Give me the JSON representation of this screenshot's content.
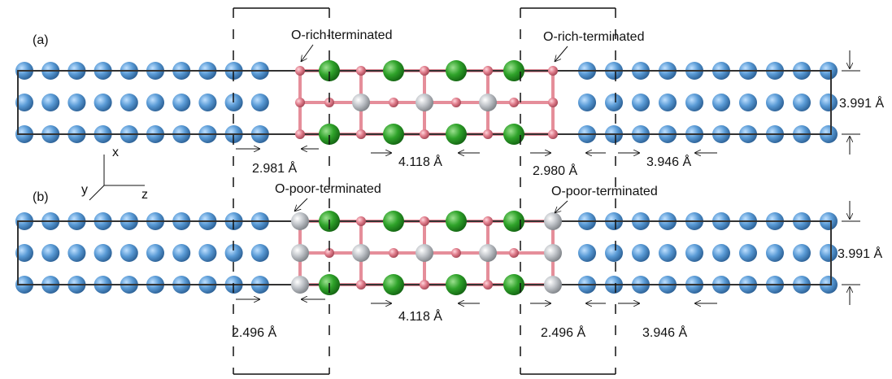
{
  "axes": {
    "x": "x",
    "y": "y",
    "z": "z"
  },
  "panels": [
    {
      "label": "(a)",
      "termination_left": "O-rich-terminated",
      "termination_right": "O-rich-terminated",
      "distance_left": "2.981 Å",
      "distance_middle": "4.118 Å",
      "distance_right": "2.980 Å",
      "distance_substrate": "3.946 Å",
      "height": "3.991 Å"
    },
    {
      "label": "(b)",
      "termination_left": "O-poor-terminated",
      "termination_right": "O-poor-terminated",
      "distance_left": "2.496 Å",
      "distance_middle": "4.118 Å",
      "distance_right": "2.496 Å",
      "distance_substrate": "3.946 Å",
      "height": "3.991 Å"
    }
  ]
}
